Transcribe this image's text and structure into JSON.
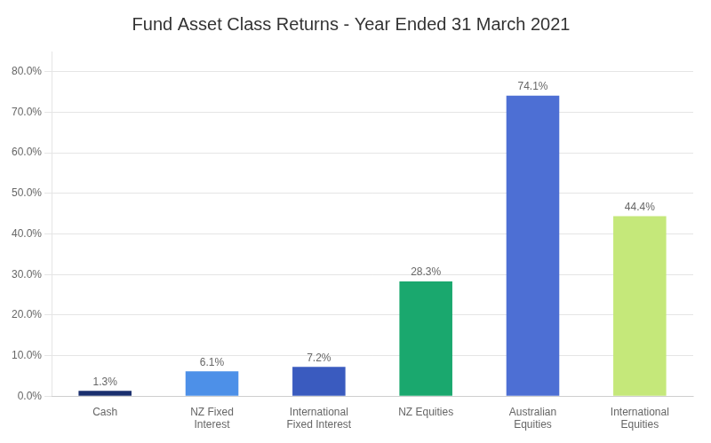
{
  "chart_data": {
    "type": "bar",
    "title": "Fund Asset Class Returns - Year Ended 31 March 2021",
    "categories": [
      "Cash",
      "NZ Fixed\nInterest",
      "International\nFixed Interest",
      "NZ Equities",
      "Australian\nEquities",
      "International\nEquities"
    ],
    "values": [
      1.3,
      6.1,
      7.2,
      28.3,
      74.1,
      44.4
    ],
    "value_labels": [
      "1.3%",
      "6.1%",
      "7.2%",
      "28.3%",
      "74.1%",
      "44.4%"
    ],
    "data_labels": true,
    "colors": [
      "#1a2f6e",
      "#4d90e8",
      "#3a5bbf",
      "#1aa86e",
      "#4d6fd4",
      "#c5e87a"
    ],
    "ylim": [
      0,
      85
    ],
    "yticks": [
      {
        "value": 0,
        "label": "0.0%"
      },
      {
        "value": 10,
        "label": "10.0%"
      },
      {
        "value": 20,
        "label": "20.0%"
      },
      {
        "value": 30,
        "label": "30.0%"
      },
      {
        "value": 40,
        "label": "40.0%"
      },
      {
        "value": 50,
        "label": "50.0%"
      },
      {
        "value": 60,
        "label": "60.0%"
      },
      {
        "value": 70,
        "label": "70.0%"
      },
      {
        "value": 80,
        "label": "80.0%"
      }
    ],
    "grid": true
  }
}
